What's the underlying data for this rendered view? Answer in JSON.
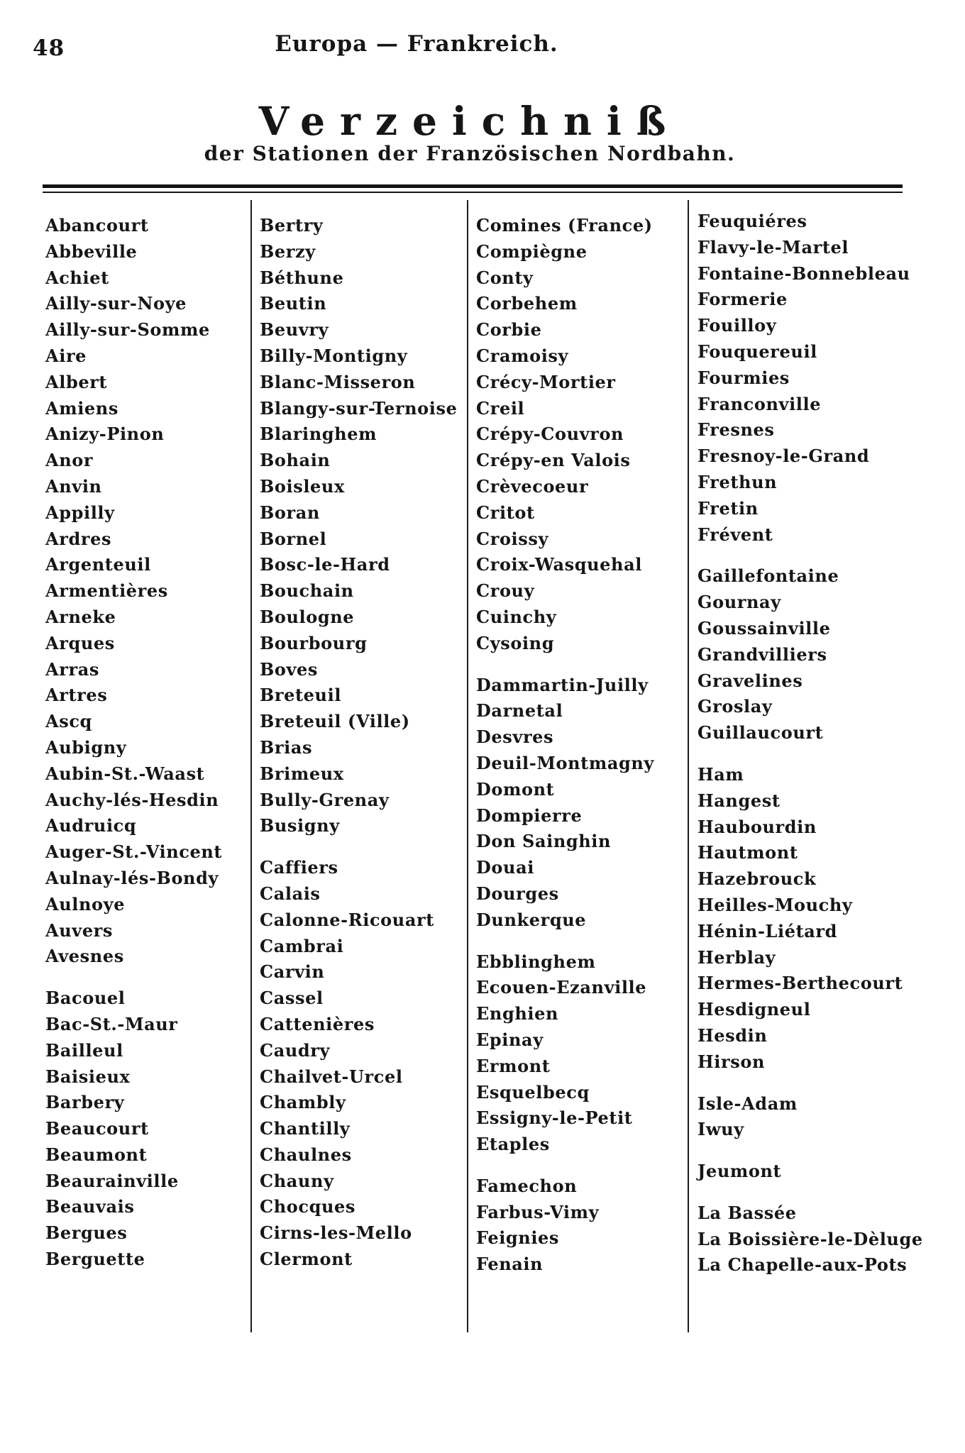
{
  "page": {
    "number": "48",
    "running_head": "Europa — Frankreich.",
    "title": "Verzeichniß",
    "subtitle": "der Stationen der Französischen Nordbahn."
  },
  "colors": {
    "ink": "#161616",
    "paper": "#ffffff"
  },
  "stations": {
    "columns": [
      {
        "groups": [
          [
            "Abancourt",
            "Abbeville",
            "Achiet",
            "Ailly-sur-Noye",
            "Ailly-sur-Somme",
            "Aire",
            "Albert",
            "Amiens",
            "Anizy-Pinon",
            "Anor",
            "Anvin",
            "Appilly",
            "Ardres",
            "Argenteuil",
            "Armentières",
            "Arneke",
            "Arques",
            "Arras",
            "Artres",
            "Ascq",
            "Aubigny",
            "Aubin-St.-Waast",
            "Auchy-lés-Hesdin",
            "Audruicq",
            "Auger-St.-Vincent",
            "Aulnay-lés-Bondy",
            "Aulnoye",
            "Auvers",
            "Avesnes"
          ],
          [
            "Bacouel",
            "Bac-St.-Maur",
            "Bailleul",
            "Baisieux",
            "Barbery",
            "Beaucourt",
            "Beaumont",
            "Beaurainville",
            "Beauvais",
            "Bergues",
            "Berguette"
          ]
        ]
      },
      {
        "groups": [
          [
            "Bertry",
            "Berzy",
            "Béthune",
            "Beutin",
            "Beuvry",
            "Billy-Montigny",
            "Blanc-Misseron",
            "Blangy-sur-Ternoise",
            "Blaringhem",
            "Bohain",
            "Boisleux",
            "Boran",
            "Bornel",
            "Bosc-le-Hard",
            "Bouchain",
            "Boulogne",
            "Bourbourg",
            "Boves",
            "Breteuil",
            "Breteuil (Ville)",
            "Brias",
            "Brimeux",
            "Bully-Grenay",
            "Busigny"
          ],
          [
            "Caffiers",
            "Calais",
            "Calonne-Ricouart",
            "Cambrai",
            "Carvin",
            "Cassel",
            "Cattenières",
            "Caudry",
            "Chailvet-Urcel",
            "Chambly",
            "Chantilly",
            "Chaulnes",
            "Chauny",
            "Chocques",
            "Cirns-les-Mello",
            "Clermont"
          ]
        ]
      },
      {
        "groups": [
          [
            "Comines (France)",
            "Compiègne",
            "Conty",
            "Corbehem",
            "Corbie",
            "Cramoisy",
            "Crécy-Mortier",
            "Creil",
            "Crépy-Couvron",
            "Crépy-en Valois",
            "Crèvecoeur",
            "Critot",
            "Croissy",
            "Croix-Wasquehal",
            "Crouy",
            "Cuinchy",
            "Cysoing"
          ],
          [
            "Dammartin-Juilly",
            "Darnetal",
            "Desvres",
            "Deuil-Montmagny",
            "Domont",
            "Dompierre",
            "Don Sainghin",
            "Douai",
            "Dourges",
            "Dunkerque"
          ],
          [
            "Ebblinghem",
            "Ecouen-Ezanville",
            "Enghien",
            "Epinay",
            "Ermont",
            "Esquelbecq",
            "Essigny-le-Petit",
            "Etaples"
          ],
          [
            "Famechon",
            "Farbus-Vimy",
            "Feignies",
            "Fenain"
          ]
        ]
      },
      {
        "groups": [
          [
            "Feuquiéres",
            "Flavy-le-Martel",
            "Fontaine-Bonnebleau",
            "Formerie",
            "Fouilloy",
            "Fouquereuil",
            "Fourmies",
            "Franconville",
            "Fresnes",
            "Fresnoy-le-Grand",
            "Frethun",
            "Fretin",
            "Frévent"
          ],
          [
            "Gaillefontaine",
            "Gournay",
            "Goussainville",
            "Grandvilliers",
            "Gravelines",
            "Groslay",
            "Guillaucourt"
          ],
          [
            "Ham",
            "Hangest",
            "Haubourdin",
            "Hautmont",
            "Hazebrouck",
            "Heilles-Mouchy",
            "Hénin-Liétard",
            "Herblay",
            "Hermes-Berthecourt",
            "Hesdigneul",
            "Hesdin",
            "Hirson"
          ],
          [
            "Isle-Adam",
            "Iwuy"
          ],
          [
            "Jeumont"
          ],
          [
            "La Bassée",
            "La Boissière-le-Dèluge",
            "La Chapelle-aux-Pots"
          ]
        ]
      }
    ]
  }
}
